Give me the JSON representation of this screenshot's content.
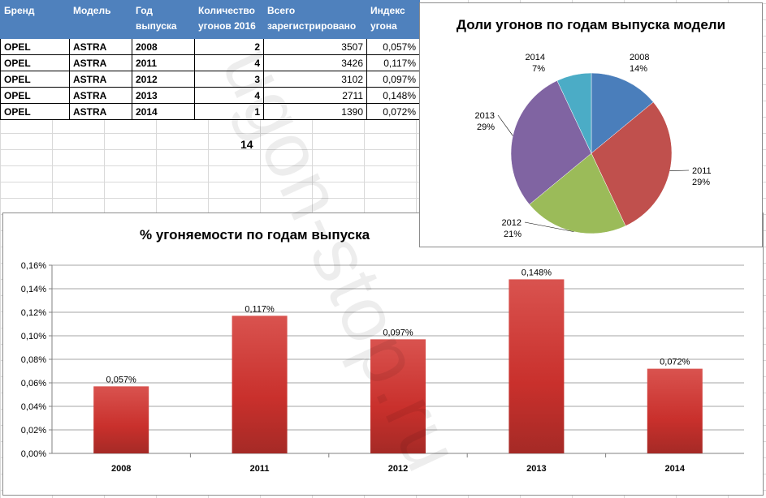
{
  "table": {
    "headers": [
      "Бренд",
      "Модель",
      "Год выпуска",
      "Количество угонов 2016",
      "Всего зарегистрировано",
      "Индекс угона"
    ],
    "rows": [
      [
        "OPEL",
        "ASTRA",
        "2008",
        "2",
        "3507",
        "0,057%"
      ],
      [
        "OPEL",
        "ASTRA",
        "2011",
        "4",
        "3426",
        "0,117%"
      ],
      [
        "OPEL",
        "ASTRA",
        "2012",
        "3",
        "3102",
        "0,097%"
      ],
      [
        "OPEL",
        "ASTRA",
        "2013",
        "4",
        "2711",
        "0,148%"
      ],
      [
        "OPEL",
        "ASTRA",
        "2014",
        "1",
        "1390",
        "0,072%"
      ]
    ],
    "total": "14"
  },
  "watermark": "ugon-stop.ru",
  "chart_data": [
    {
      "type": "pie",
      "title": "Доли угонов по годам выпуска модели",
      "categories": [
        "2008",
        "2011",
        "2012",
        "2013",
        "2014"
      ],
      "values": [
        14,
        29,
        21,
        29,
        7
      ],
      "labels": [
        "14%",
        "29%",
        "21%",
        "29%",
        "7%"
      ],
      "colors": [
        "#4a7ebb",
        "#c0504d",
        "#9bbb59",
        "#8064a2",
        "#4bacc6"
      ]
    },
    {
      "type": "bar",
      "title": "% угоняемости по годам выпуска",
      "categories": [
        "2008",
        "2011",
        "2012",
        "2013",
        "2014"
      ],
      "values": [
        0.057,
        0.117,
        0.097,
        0.148,
        0.072
      ],
      "data_labels": [
        "0,057%",
        "0,117%",
        "0,097%",
        "0,148%",
        "0,072%"
      ],
      "ylim": [
        0,
        0.16
      ],
      "yticks": [
        "0,00%",
        "0,02%",
        "0,04%",
        "0,06%",
        "0,08%",
        "0,10%",
        "0,12%",
        "0,14%",
        "0,16%"
      ],
      "grid": true,
      "color": "#c0392b"
    }
  ]
}
